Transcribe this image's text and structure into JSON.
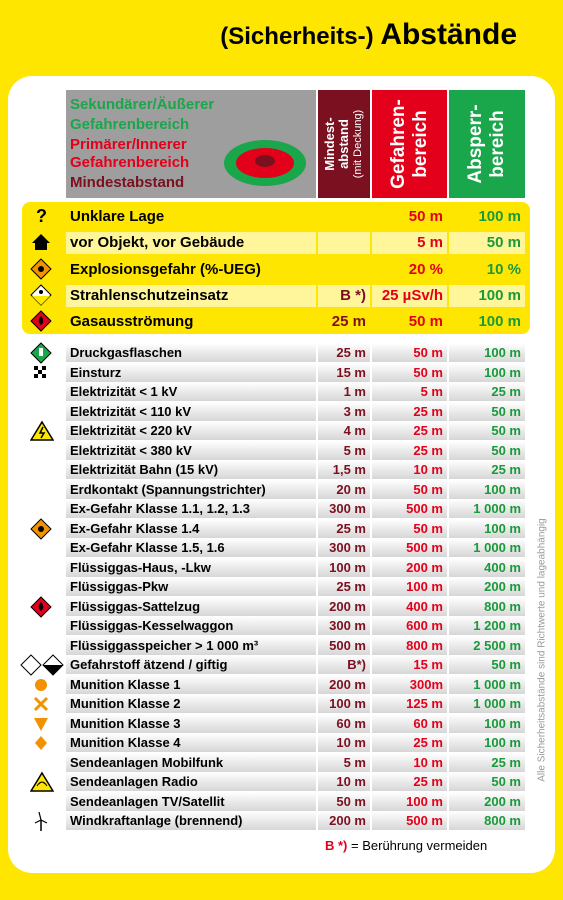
{
  "title": {
    "prefix": "(Sicherheits-)",
    "main": "Abstände"
  },
  "legend": {
    "lines": [
      {
        "text": "Sekundärer/Äußerer",
        "color": "#1aa64a"
      },
      {
        "text": "Gefahrenbereich",
        "color": "#1aa64a"
      },
      {
        "text": "Primärer/Innerer",
        "color": "#e3001b"
      },
      {
        "text": "Gefahrenbereich",
        "color": "#e3001b"
      },
      {
        "text": "Mindestabstand",
        "color": "#7b1020"
      }
    ]
  },
  "columns": [
    {
      "label": "Mindest-\nabstand",
      "sub": "(mit Deckung)",
      "bg": "#7b1020"
    },
    {
      "label": "Gefahren-\nbereich",
      "bg": "#e3001b"
    },
    {
      "label": "Absperr-\nbereich",
      "bg": "#1aa64a"
    }
  ],
  "rows": [
    {
      "label": "Unklare Lage",
      "min": "",
      "gef": "50 m",
      "abs": "100 m",
      "style": "yy",
      "icon": "question-icon"
    },
    {
      "label": "vor Objekt, vor Gebäude",
      "min": "",
      "gef": "5 m",
      "abs": "50 m",
      "style": "y",
      "icon": "house-icon"
    },
    {
      "label": "Explosionsgefahr (%-UEG)",
      "min": "",
      "gef": "20 %",
      "abs": "10 %",
      "style": "yy",
      "icon": "explosive-icon"
    },
    {
      "label": "Strahlenschutzeinsatz",
      "min": "B *)",
      "gef": "25 µSv/h",
      "abs": "100 m",
      "style": "y",
      "icon": "radiation-icon"
    },
    {
      "label": "Gasausströmung",
      "min": "25 m",
      "gef": "50 m",
      "abs": "100 m",
      "style": "yy",
      "icon": "flammable-gas-icon"
    },
    {
      "label": "Druckgasflaschen",
      "min": "25 m",
      "gef": "50 m",
      "abs": "100 m",
      "style": "",
      "icon": "gas-cylinder-icon"
    },
    {
      "label": "Einsturz",
      "min": "15 m",
      "gef": "50 m",
      "abs": "100 m",
      "style": "",
      "icon": "collapse-icon"
    },
    {
      "label": "Elektrizität   < 1 kV",
      "min": "1 m",
      "gef": "5 m",
      "abs": "25 m",
      "style": "",
      "icon": ""
    },
    {
      "label": "Elektrizität   < 110 kV",
      "min": "3 m",
      "gef": "25 m",
      "abs": "50 m",
      "style": "",
      "icon": ""
    },
    {
      "label": "Elektrizität   < 220 kV",
      "min": "4 m",
      "gef": "25 m",
      "abs": "50 m",
      "style": "",
      "icon": "electricity-icon"
    },
    {
      "label": "Elektrizität   < 380 kV",
      "min": "5 m",
      "gef": "25 m",
      "abs": "50 m",
      "style": "",
      "icon": ""
    },
    {
      "label": "Elektrizität Bahn (15 kV)",
      "min": "1,5 m",
      "gef": "10 m",
      "abs": "25 m",
      "style": "",
      "icon": ""
    },
    {
      "label": "Erdkontakt (Spannungstrichter)",
      "min": "20 m",
      "gef": "50 m",
      "abs": "100 m",
      "style": "",
      "icon": ""
    },
    {
      "label": "Ex-Gefahr Klasse 1.1, 1.2, 1.3",
      "min": "300 m",
      "gef": "500 m",
      "abs": "1 000 m",
      "style": "",
      "icon": ""
    },
    {
      "label": "Ex-Gefahr Klasse 1.4",
      "min": "25 m",
      "gef": "50 m",
      "abs": "100 m",
      "style": "",
      "icon": "explosive-icon"
    },
    {
      "label": "Ex-Gefahr Klasse 1.5, 1.6",
      "min": "300 m",
      "gef": "500 m",
      "abs": "1 000 m",
      "style": "",
      "icon": ""
    },
    {
      "label": "Flüssiggas-Haus, -Lkw",
      "min": "100 m",
      "gef": "200 m",
      "abs": "400 m",
      "style": "",
      "icon": ""
    },
    {
      "label": "Flüssiggas-Pkw",
      "min": "25 m",
      "gef": "100 m",
      "abs": "200 m",
      "style": "",
      "icon": ""
    },
    {
      "label": "Flüssiggas-Sattelzug",
      "min": "200 m",
      "gef": "400 m",
      "abs": "800 m",
      "style": "",
      "icon": "flammable-gas-icon"
    },
    {
      "label": "Flüssiggas-Kesselwaggon",
      "min": "300 m",
      "gef": "600 m",
      "abs": "1 200 m",
      "style": "",
      "icon": ""
    },
    {
      "label": "Flüssiggasspeicher > 1 000 m³",
      "min": "500 m",
      "gef": "800 m",
      "abs": "2 500 m",
      "style": "",
      "icon": ""
    },
    {
      "label": "Gefahrstoff ätzend / giftig",
      "min": "B*)",
      "gef": "15 m",
      "abs": "50 m",
      "style": "",
      "icon": "toxic-corrosive-icon"
    },
    {
      "label": "Munition Klasse 1",
      "min": "200 m",
      "gef": "300m",
      "abs": "1 000 m",
      "style": "",
      "icon": "circle-icon"
    },
    {
      "label": "Munition Klasse 2",
      "min": "100 m",
      "gef": "125 m",
      "abs": "1 000 m",
      "style": "",
      "icon": "cross-icon"
    },
    {
      "label": "Munition Klasse 3",
      "min": "60 m",
      "gef": "60 m",
      "abs": "100 m",
      "style": "",
      "icon": "triangle-icon"
    },
    {
      "label": "Munition Klasse 4",
      "min": "10 m",
      "gef": "25 m",
      "abs": "100 m",
      "style": "",
      "icon": "diamond-icon"
    },
    {
      "label": "Sendeanlagen Mobilfunk",
      "min": "5 m",
      "gef": "10 m",
      "abs": "25 m",
      "style": "",
      "icon": ""
    },
    {
      "label": "Sendeanlagen Radio",
      "min": "10 m",
      "gef": "25 m",
      "abs": "50 m",
      "style": "",
      "icon": "radio-wave-icon"
    },
    {
      "label": "Sendeanlagen TV/Satellit",
      "min": "50 m",
      "gef": "100 m",
      "abs": "200 m",
      "style": "",
      "icon": ""
    },
    {
      "label": "Windkraftanlage (brennend)",
      "min": "200 m",
      "gef": "500 m",
      "abs": "800 m",
      "style": "",
      "icon": "wind-turbine-icon"
    }
  ],
  "footnote": {
    "mark": "B *)",
    "text": "= Berührung vermeiden"
  },
  "side_note": "Alle Sicherheitsabstände sind Richtwerte und lageabhängig"
}
